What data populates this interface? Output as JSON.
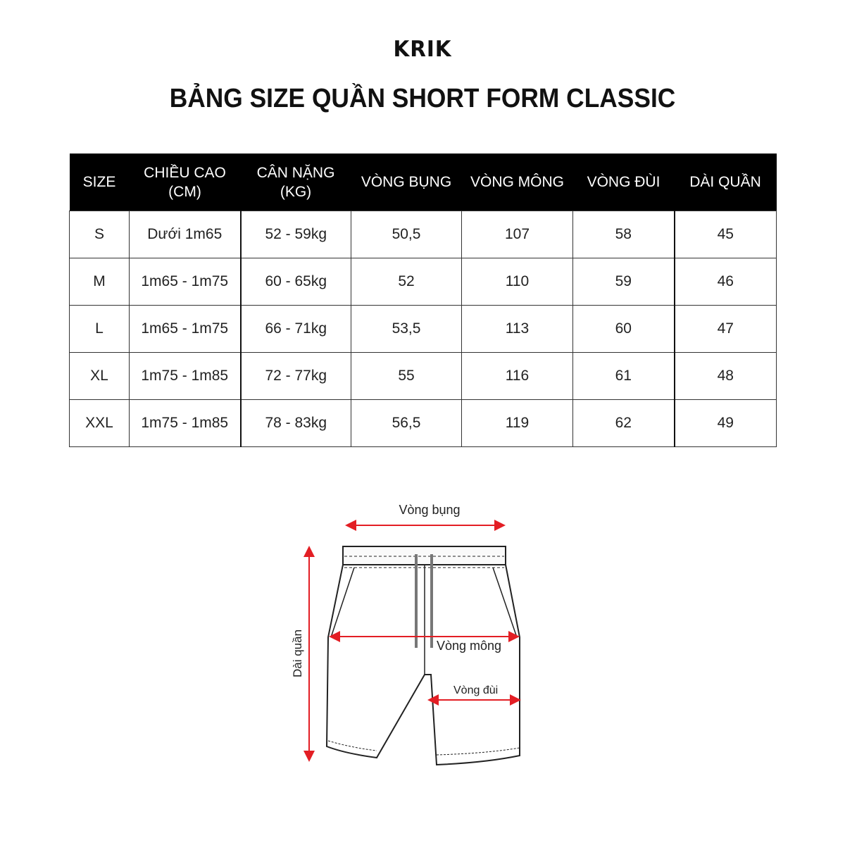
{
  "brand": "KRIK",
  "title": "BẢNG SIZE QUẦN SHORT FORM CLASSIC",
  "table": {
    "headers": [
      "SIZE",
      "CHIỀU CAO\n(CM)",
      "CÂN NẶNG\n(KG)",
      "VÒNG BỤNG",
      "VÒNG MÔNG",
      "VÒNG ĐÙI",
      "DÀI QUẦN"
    ],
    "rows": [
      [
        "S",
        "Dưới 1m65",
        "52 - 59kg",
        "50,5",
        "107",
        "58",
        "45"
      ],
      [
        "M",
        "1m65 - 1m75",
        "60 - 65kg",
        "52",
        "110",
        "59",
        "46"
      ],
      [
        "L",
        "1m65 - 1m75",
        "66 - 71kg",
        "53,5",
        "113",
        "60",
        "47"
      ],
      [
        "XL",
        "1m75 - 1m85",
        "72 - 77kg",
        "55",
        "116",
        "61",
        "48"
      ],
      [
        "XXL",
        "1m75 - 1m85",
        "78 - 83kg",
        "56,5",
        "119",
        "62",
        "49"
      ]
    ]
  },
  "diagram": {
    "waist_label": "Vòng bụng",
    "hip_label": "Vòng mông",
    "thigh_label": "Vòng đùi",
    "length_label": "Dài quần",
    "arrow_color": "#e31e24"
  }
}
